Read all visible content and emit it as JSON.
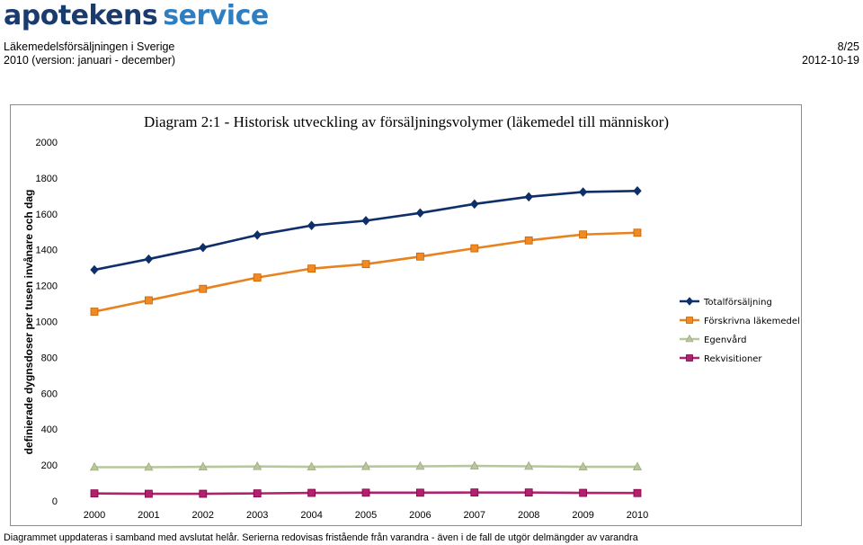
{
  "header": {
    "logo_part1": "apotekens",
    "logo_part2": "service",
    "line1": "Läkemedelsförsäljningen i Sverige",
    "line2": "2010 (version: januari - december)",
    "page": "8/25",
    "date": "2012-10-19"
  },
  "footer": {
    "note": "Diagrammet uppdateras i samband med avslutat helår. Serierna redovisas fristående från varandra - även i de fall de utgör delmängder av varandra"
  },
  "colors": {
    "total": "#0f2f6b",
    "forskrivna": "#e8821e",
    "forskrivna_marker": "#f08a24",
    "egenvard": "#b8c79b",
    "rekvisitioner": "#b0226e"
  },
  "chart_data": {
    "type": "line",
    "title": "Diagram 2:1 - Historisk utveckling av försäljningsvolymer (läkemedel till människor)",
    "xlabel": "",
    "ylabel": "definierade dygnsdoser per tusen invånare och dag",
    "categories": [
      "2000",
      "2001",
      "2002",
      "2003",
      "2004",
      "2005",
      "2006",
      "2007",
      "2008",
      "2009",
      "2010"
    ],
    "ylim": [
      0,
      2000
    ],
    "yticks": [
      "0",
      "200",
      "400",
      "600",
      "800",
      "1000",
      "1200",
      "1400",
      "1600",
      "1800",
      "2000"
    ],
    "legend_position": "right",
    "series": [
      {
        "name": "Totalförsäljning",
        "marker": "diamond",
        "color_key": "total",
        "values": [
          1288,
          1348,
          1412,
          1482,
          1535,
          1562,
          1605,
          1655,
          1695,
          1722,
          1728
        ]
      },
      {
        "name": "Förskrivna läkemedel",
        "marker": "square",
        "color_key": "forskrivna",
        "values": [
          1055,
          1118,
          1182,
          1245,
          1295,
          1320,
          1362,
          1408,
          1452,
          1485,
          1495
        ]
      },
      {
        "name": "Egenvård",
        "marker": "triangle",
        "color_key": "egenvard",
        "values": [
          188,
          188,
          190,
          192,
          190,
          192,
          193,
          195,
          193,
          190,
          190
        ]
      },
      {
        "name": "Rekvisitioner",
        "marker": "square",
        "color_key": "rekvisitioner",
        "values": [
          42,
          40,
          40,
          42,
          45,
          46,
          46,
          47,
          47,
          45,
          44
        ]
      }
    ]
  }
}
